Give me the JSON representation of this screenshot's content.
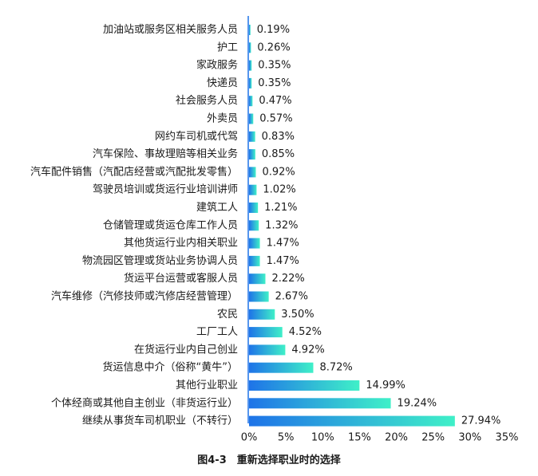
{
  "caption": "图4-3　重新选择职业时的选择",
  "colors": {
    "gradient_start": "#1e73e8",
    "gradient_end": "#3ff0c8",
    "axis": "#1e73e8"
  },
  "chart_data": {
    "type": "bar",
    "orientation": "horizontal",
    "title": "图4-3　重新选择职业时的选择",
    "categories": [
      "加油站或服务区相关服务人员",
      "护工",
      "家政服务",
      "快递员",
      "社会服务人员",
      "外卖员",
      "网约车司机或代驾",
      "汽车保险、事故理赔等相关业务",
      "汽车配件销售（汽配店经营或汽配批发零售）",
      "驾驶员培训或货运行业培训讲师",
      "建筑工人",
      "仓储管理或货运仓库工作人员",
      "其他货运行业内相关职业",
      "物流园区管理或货站业务协调人员",
      "货运平台运营或客服人员",
      "汽车维修（汽修技师或汽修店经营管理）",
      "农民",
      "工厂工人",
      "在货运行业内自己创业",
      "货运信息中介（俗称“黄牛”）",
      "其他行业职业",
      "个体经商或其他自主创业（非货运行业）",
      "继续从事货车司机职业（不转行）"
    ],
    "values": [
      0.19,
      0.26,
      0.35,
      0.35,
      0.47,
      0.57,
      0.83,
      0.85,
      0.92,
      1.02,
      1.21,
      1.32,
      1.47,
      1.47,
      2.22,
      2.67,
      3.5,
      4.52,
      4.92,
      8.72,
      14.99,
      19.24,
      27.94
    ],
    "value_labels": [
      "0.19%",
      "0.26%",
      "0.35%",
      "0.35%",
      "0.47%",
      "0.57%",
      "0.83%",
      "0.85%",
      "0.92%",
      "1.02%",
      "1.21%",
      "1.32%",
      "1.47%",
      "1.47%",
      "2.22%",
      "2.67%",
      "3.50%",
      "4.52%",
      "4.92%",
      "8.72%",
      "14.99%",
      "19.24%",
      "27.94%"
    ],
    "xlim": [
      0,
      35
    ],
    "xticks": [
      0,
      5,
      10,
      15,
      20,
      25,
      30,
      35
    ],
    "xtick_labels": [
      "0%",
      "5%",
      "10%",
      "15%",
      "20%",
      "25%",
      "30%",
      "35%"
    ],
    "grid": false,
    "legend": "none"
  }
}
